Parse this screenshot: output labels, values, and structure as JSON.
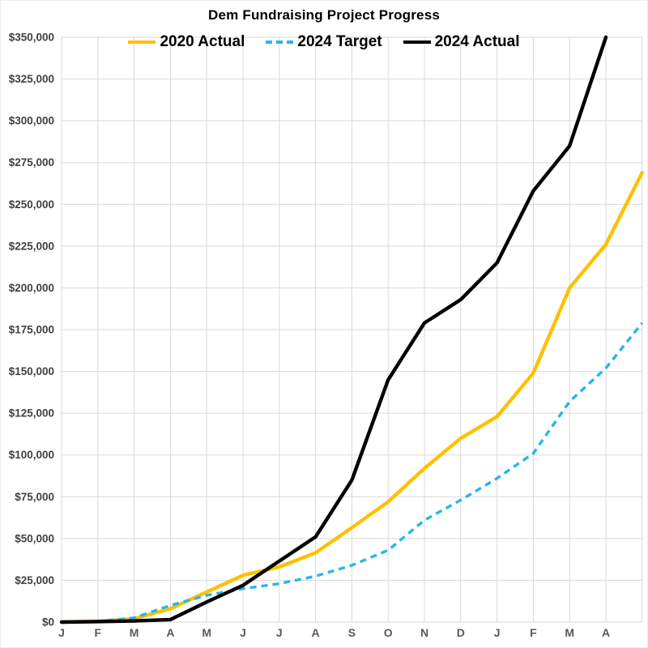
{
  "page": {
    "title": "Dem Fundraising Project Progress"
  },
  "chart_data": {
    "type": "line",
    "title": "Dem Fundraising Project Progress",
    "x_tick_labels": [
      "J",
      "F",
      "M",
      "A",
      "M",
      "J",
      "J",
      "A",
      "S",
      "O",
      "N",
      "D",
      "J",
      "F",
      "M",
      "A",
      ""
    ],
    "ylim": [
      0,
      350000
    ],
    "ytick_step": 25000,
    "ytick_labels": [
      "$0",
      "$25,000",
      "$50,000",
      "$75,000",
      "$100,000",
      "$125,000",
      "$150,000",
      "$175,000",
      "$200,000",
      "$225,000",
      "$250,000",
      "$275,000",
      "$300,000",
      "$325,000",
      "$350,000"
    ],
    "grid": true,
    "legend_position": "top-center-inside",
    "gridline_color": "#d9d9d9",
    "x_label_color": "#595959",
    "y_label_color": "#404040",
    "series": [
      {
        "name": "2020 Actual",
        "color": "#FFC000",
        "style": "solid",
        "values": [
          0,
          500,
          2000,
          8000,
          18000,
          28000,
          33000,
          41500,
          56500,
          72000,
          92000,
          110000,
          123000,
          149000,
          200000,
          226000,
          269000
        ]
      },
      {
        "name": "2024 Target",
        "color": "#29B5E8",
        "style": "dashed",
        "values": [
          0,
          500,
          2500,
          10000,
          16000,
          20000,
          23000,
          27500,
          34000,
          43000,
          61000,
          73000,
          86000,
          101000,
          132000,
          152000,
          179000
        ]
      },
      {
        "name": "2024 Actual",
        "color": "#000000",
        "style": "solid",
        "values": [
          0,
          300,
          700,
          1500,
          12000,
          22000,
          36500,
          51000,
          85000,
          145000,
          179000,
          193000,
          215000,
          258000,
          285000,
          350000,
          null
        ]
      }
    ]
  }
}
